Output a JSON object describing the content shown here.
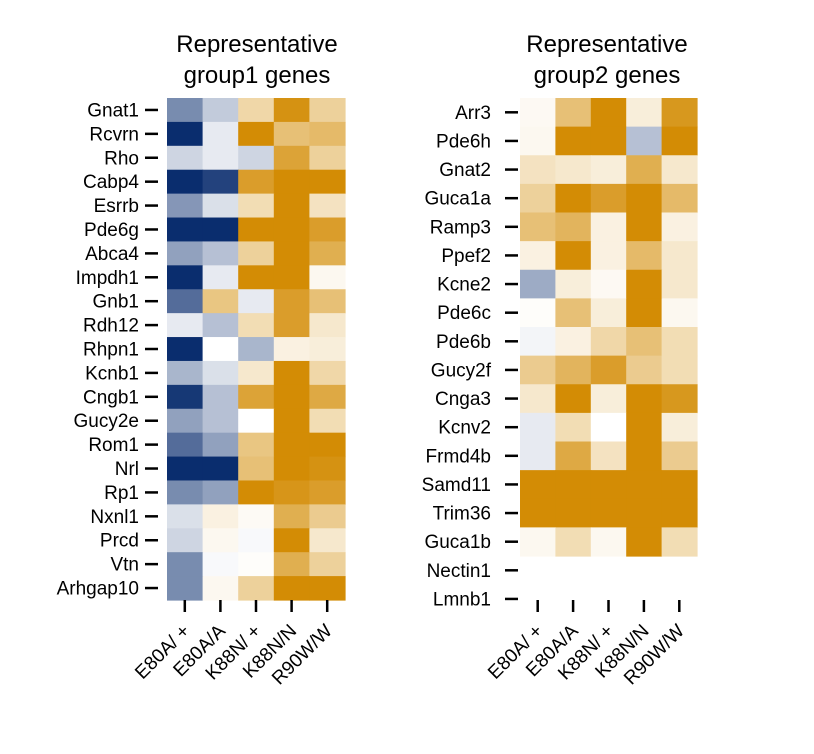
{
  "chart_data": [
    {
      "type": "heatmap",
      "title_lines": [
        "Representative",
        "group1 genes"
      ],
      "columns": [
        "E80A/ +",
        "E80A/A",
        "K88N/ +",
        "K88N/N",
        "R90W/W"
      ],
      "rows": [
        "Gnat1",
        "Rcvrn",
        "Rho",
        "Cabp4",
        "Esrrb",
        "Pde6g",
        "Abca4",
        "Impdh1",
        "Gnb1",
        "Rdh12",
        "Rhpn1",
        "Kcnb1",
        "Cngb1",
        "Gucy2e",
        "Rom1",
        "Nrl",
        "Rp1",
        "Nxnl1",
        "Prcd",
        "Vtn",
        "Arhgap10"
      ],
      "values": [
        [
          -0.55,
          -0.25,
          0.35,
          0.95,
          0.4
        ],
        [
          -1.0,
          -0.1,
          1.0,
          0.55,
          0.6
        ],
        [
          -0.2,
          -0.1,
          -0.2,
          0.8,
          0.4
        ],
        [
          -1.0,
          -0.9,
          0.85,
          1.0,
          1.0
        ],
        [
          -0.5,
          -0.15,
          0.3,
          1.0,
          0.25
        ],
        [
          -1.0,
          -1.0,
          1.0,
          1.0,
          0.85
        ],
        [
          -0.45,
          -0.3,
          0.4,
          1.0,
          0.7
        ],
        [
          -1.0,
          -0.1,
          1.0,
          1.0,
          0.06
        ],
        [
          -0.7,
          0.5,
          -0.1,
          0.85,
          0.55
        ],
        [
          -0.1,
          -0.3,
          0.3,
          0.85,
          0.2
        ],
        [
          -1.0,
          0.0,
          -0.35,
          0.12,
          0.15
        ],
        [
          -0.35,
          -0.15,
          0.2,
          1.0,
          0.35
        ],
        [
          -0.95,
          -0.3,
          0.8,
          1.0,
          0.75
        ],
        [
          -0.45,
          -0.3,
          0.0,
          1.0,
          0.3
        ],
        [
          -0.7,
          -0.45,
          0.5,
          1.0,
          1.0
        ],
        [
          -1.0,
          -1.0,
          0.55,
          1.0,
          0.95
        ],
        [
          -0.55,
          -0.45,
          1.0,
          0.92,
          0.85
        ],
        [
          -0.15,
          0.12,
          0.04,
          0.7,
          0.45
        ],
        [
          -0.2,
          0.06,
          -0.03,
          1.0,
          0.2
        ],
        [
          -0.55,
          -0.03,
          0.02,
          0.7,
          0.4
        ],
        [
          -0.55,
          0.06,
          0.4,
          1.0,
          1.0
        ]
      ]
    },
    {
      "type": "heatmap",
      "title_lines": [
        "Representative",
        "group2 genes"
      ],
      "columns": [
        "E80A/ +",
        "E80A/A",
        "K88N/ +",
        "K88N/N",
        "R90W/W"
      ],
      "rows": [
        "Arr3",
        "Pde6h",
        "Gnat2",
        "Guca1a",
        "Ramp3",
        "Ppef2",
        "Kcne2",
        "Pde6c",
        "Pde6b",
        "Gucy2f",
        "Cnga3",
        "Kcnv2",
        "Frmd4b",
        "Samd11",
        "Trim36",
        "Guca1b",
        "Nectin1",
        "Lmnb1"
      ],
      "values": [
        [
          0.05,
          0.55,
          1.0,
          0.15,
          0.9
        ],
        [
          0.06,
          1.0,
          1.0,
          -0.3,
          1.0
        ],
        [
          0.25,
          0.2,
          0.15,
          0.7,
          0.2
        ],
        [
          0.4,
          1.0,
          0.85,
          1.0,
          0.6
        ],
        [
          0.55,
          0.65,
          0.12,
          1.0,
          0.12
        ],
        [
          0.12,
          1.0,
          0.12,
          0.6,
          0.2
        ],
        [
          -0.4,
          0.15,
          0.05,
          1.0,
          0.2
        ],
        [
          0.02,
          0.55,
          0.15,
          1.0,
          0.06
        ],
        [
          -0.05,
          0.12,
          0.35,
          0.55,
          0.3
        ],
        [
          0.45,
          0.65,
          0.85,
          0.45,
          0.3
        ],
        [
          0.2,
          1.0,
          0.15,
          1.0,
          0.9
        ],
        [
          -0.1,
          0.3,
          0.0,
          1.0,
          0.15
        ],
        [
          -0.1,
          0.75,
          0.25,
          1.0,
          0.45
        ],
        [
          1.0,
          1.0,
          1.0,
          1.0,
          1.0
        ],
        [
          1.0,
          1.0,
          1.0,
          1.0,
          1.0
        ],
        [
          0.06,
          0.3,
          0.06,
          1.0,
          0.3
        ],
        [
          null,
          null,
          null,
          null,
          null
        ],
        [
          null,
          null,
          null,
          null,
          null
        ]
      ]
    }
  ],
  "colors": {
    "low": "#0a2d6e",
    "mid": "#ffffff",
    "high": "#d38c05"
  }
}
